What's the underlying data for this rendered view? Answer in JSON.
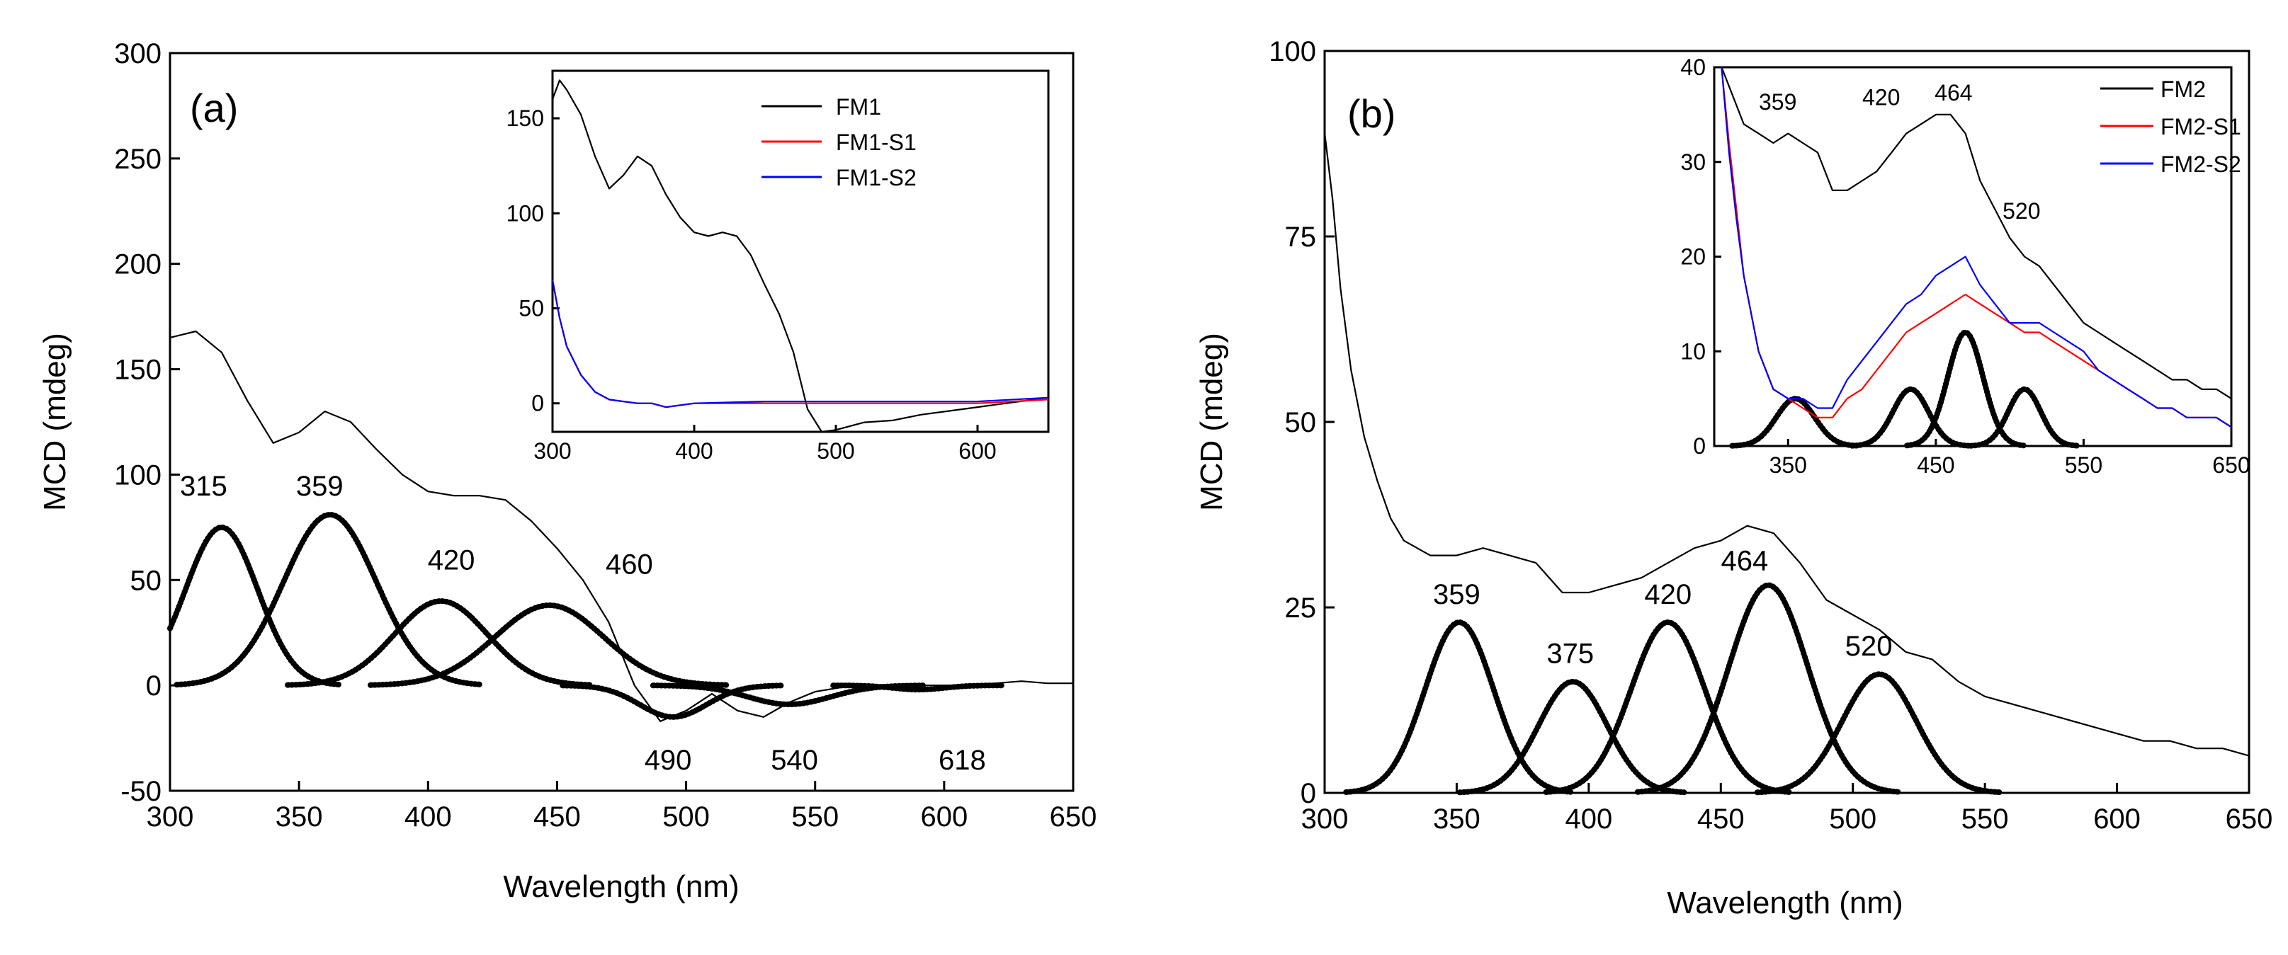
{
  "colors": {
    "black": "#000000",
    "red": "#ff0000",
    "blue": "#0000ff"
  },
  "chart_data": [
    {
      "type": "line",
      "panel": "a",
      "panel_label": "(a)",
      "xlabel": "Wavelength (nm)",
      "ylabel": "MCD (mdeg)",
      "xlim": [
        300,
        650
      ],
      "ylim": [
        -50,
        300
      ],
      "xticks": [
        300,
        350,
        400,
        450,
        500,
        550,
        600,
        650
      ],
      "yticks": [
        -50,
        0,
        50,
        100,
        150,
        200,
        250,
        300
      ],
      "series": [
        {
          "name": "FM1",
          "color": "#000000",
          "x": [
            300,
            310,
            320,
            330,
            340,
            350,
            360,
            370,
            380,
            390,
            400,
            410,
            420,
            430,
            440,
            450,
            460,
            470,
            480,
            490,
            500,
            510,
            520,
            530,
            540,
            550,
            560,
            570,
            580,
            590,
            600,
            610,
            620,
            630,
            640,
            650
          ],
          "y": [
            165,
            168,
            158,
            135,
            115,
            120,
            130,
            125,
            112,
            100,
            92,
            90,
            90,
            88,
            78,
            65,
            50,
            30,
            0,
            -17,
            -12,
            -4,
            -12,
            -15,
            -8,
            -3,
            -1,
            0,
            0,
            0,
            0,
            0,
            1,
            2,
            1,
            1
          ]
        }
      ],
      "gaussians": [
        {
          "center": 320,
          "amplitude": 75,
          "width": 14
        },
        {
          "center": 362,
          "amplitude": 81,
          "width": 18
        },
        {
          "center": 405,
          "amplitude": 40,
          "width": 18
        },
        {
          "center": 447,
          "amplitude": 38,
          "width": 21
        },
        {
          "center": 495,
          "amplitude": -15,
          "width": 13
        },
        {
          "center": 540,
          "amplitude": -9,
          "width": 16
        },
        {
          "center": 590,
          "amplitude": -2,
          "width": 10
        }
      ],
      "annotations": [
        {
          "text": "315",
          "x": 313,
          "y": 90
        },
        {
          "text": "359",
          "x": 358,
          "y": 90
        },
        {
          "text": "420",
          "x": 409,
          "y": 55
        },
        {
          "text": "460",
          "x": 478,
          "y": 53
        },
        {
          "text": "490",
          "x": 493,
          "y": -40
        },
        {
          "text": "540",
          "x": 542,
          "y": -40
        },
        {
          "text": "618",
          "x": 607,
          "y": -40
        }
      ],
      "inset": {
        "xlim": [
          300,
          650
        ],
        "ylim": [
          -15,
          175
        ],
        "xticks": [
          300,
          400,
          500,
          600
        ],
        "yticks": [
          0,
          50,
          100,
          150
        ],
        "legend": [
          "FM1",
          "FM1-S1",
          "FM1-S2"
        ],
        "series": [
          {
            "name": "FM1",
            "color": "#000000",
            "x": [
              300,
              305,
              310,
              320,
              330,
              340,
              350,
              360,
              370,
              380,
              390,
              400,
              410,
              420,
              430,
              440,
              450,
              460,
              470,
              480,
              490,
              500,
              520,
              540,
              560,
              580,
              600,
              620,
              640,
              650
            ],
            "y": [
              160,
              170,
              165,
              152,
              130,
              113,
              120,
              130,
              125,
              110,
              98,
              90,
              88,
              90,
              88,
              78,
              62,
              47,
              27,
              -3,
              -17,
              -14,
              -10,
              -9,
              -6,
              -4,
              -2,
              0,
              2,
              2
            ]
          },
          {
            "name": "FM1-S1",
            "color": "#ff0000",
            "x": [
              300,
              305,
              310,
              320,
              330,
              340,
              350,
              360,
              370,
              380,
              400,
              450,
              500,
              550,
              600,
              650
            ],
            "y": [
              65,
              45,
              30,
              15,
              6,
              2,
              1,
              0,
              0,
              -2,
              0,
              0,
              0,
              0,
              0,
              2
            ]
          },
          {
            "name": "FM1-S2",
            "color": "#0000ff",
            "x": [
              300,
              305,
              310,
              320,
              330,
              340,
              350,
              360,
              370,
              380,
              400,
              450,
              500,
              550,
              600,
              650
            ],
            "y": [
              65,
              45,
              30,
              15,
              6,
              2,
              1,
              0,
              0,
              -2,
              0,
              1,
              1,
              1,
              1,
              3
            ]
          }
        ]
      }
    },
    {
      "type": "line",
      "panel": "b",
      "panel_label": "(b)",
      "xlabel": "Wavelength (nm)",
      "ylabel": "MCD (mdeg)",
      "xlim": [
        300,
        650
      ],
      "ylim": [
        0,
        100
      ],
      "xticks": [
        300,
        350,
        400,
        450,
        500,
        550,
        600,
        650
      ],
      "yticks": [
        0,
        25,
        50,
        75,
        100
      ],
      "series": [
        {
          "name": "FM2",
          "color": "#000000",
          "x": [
            300,
            303,
            306,
            310,
            315,
            320,
            325,
            330,
            340,
            350,
            360,
            370,
            380,
            390,
            400,
            410,
            420,
            430,
            440,
            450,
            460,
            470,
            480,
            490,
            500,
            510,
            520,
            530,
            540,
            550,
            560,
            570,
            580,
            590,
            600,
            610,
            620,
            630,
            640,
            650
          ],
          "y": [
            89,
            80,
            68,
            57,
            48,
            42,
            37,
            34,
            32,
            32,
            33,
            32,
            31,
            27,
            27,
            28,
            29,
            31,
            33,
            34,
            36,
            35,
            31,
            26,
            24,
            22,
            19,
            18,
            15,
            13,
            12,
            11,
            10,
            9,
            8,
            7,
            7,
            6,
            6,
            5
          ]
        }
      ],
      "gaussians": [
        {
          "center": 351,
          "amplitude": 23,
          "width": 13
        },
        {
          "center": 394,
          "amplitude": 15,
          "width": 13
        },
        {
          "center": 430,
          "amplitude": 23,
          "width": 14
        },
        {
          "center": 468,
          "amplitude": 28,
          "width": 15
        },
        {
          "center": 510,
          "amplitude": 16,
          "width": 14
        }
      ],
      "annotations": [
        {
          "text": "359",
          "x": 350,
          "y": 25.5
        },
        {
          "text": "375",
          "x": 393,
          "y": 17.5
        },
        {
          "text": "420",
          "x": 430,
          "y": 25.5
        },
        {
          "text": "464",
          "x": 459,
          "y": 30
        },
        {
          "text": "520",
          "x": 506,
          "y": 18.5
        }
      ],
      "inset": {
        "xlim": [
          300,
          650
        ],
        "ylim": [
          0,
          40
        ],
        "xticks": [
          350,
          450,
          550,
          650
        ],
        "yticks": [
          0,
          10,
          20,
          30,
          40
        ],
        "legend": [
          "FM2",
          "FM2-S1",
          "FM2-S2"
        ],
        "annotations": [
          {
            "text": "359",
            "x": 343,
            "y": 35.5
          },
          {
            "text": "420",
            "x": 413,
            "y": 36
          },
          {
            "text": "464",
            "x": 462,
            "y": 36.5
          },
          {
            "text": "520",
            "x": 508,
            "y": 24
          }
        ],
        "series": [
          {
            "name": "FM2",
            "color": "#000000",
            "x": [
              305,
              310,
              315,
              320,
              330,
              340,
              350,
              360,
              370,
              380,
              390,
              400,
              410,
              420,
              430,
              440,
              450,
              460,
              470,
              480,
              490,
              500,
              510,
              520,
              530,
              540,
              550,
              560,
              570,
              580,
              590,
              600,
              610,
              620,
              630,
              640,
              650
            ],
            "y": [
              40,
              38,
              36,
              34,
              33,
              32,
              33,
              32,
              31,
              27,
              27,
              28,
              29,
              31,
              33,
              34,
              35,
              35,
              33,
              28,
              25,
              22,
              20,
              19,
              17,
              15,
              13,
              12,
              11,
              10,
              9,
              8,
              7,
              7,
              6,
              6,
              5
            ]
          },
          {
            "name": "FM2-S1",
            "color": "#ff0000",
            "x": [
              305,
              310,
              315,
              320,
              330,
              340,
              350,
              360,
              370,
              380,
              390,
              400,
              410,
              420,
              430,
              440,
              450,
              460,
              470,
              480,
              490,
              500,
              510,
              520,
              530,
              540,
              550,
              560,
              570,
              580,
              590,
              600,
              610,
              620,
              630,
              640,
              650
            ],
            "y": [
              40,
              32,
              25,
              18,
              10,
              6,
              5,
              4,
              3,
              3,
              5,
              6,
              8,
              10,
              12,
              13,
              14,
              15,
              16,
              15,
              14,
              13,
              12,
              12,
              11,
              10,
              9,
              8,
              7,
              6,
              5,
              4,
              4,
              3,
              3,
              3,
              2
            ]
          },
          {
            "name": "FM2-S2",
            "color": "#0000ff",
            "x": [
              305,
              310,
              315,
              320,
              330,
              340,
              350,
              360,
              370,
              380,
              390,
              400,
              410,
              420,
              430,
              440,
              450,
              460,
              470,
              480,
              490,
              500,
              510,
              520,
              530,
              540,
              550,
              560,
              570,
              580,
              590,
              600,
              610,
              620,
              630,
              640,
              650
            ],
            "y": [
              40,
              31,
              24,
              18,
              10,
              6,
              5,
              5,
              4,
              4,
              7,
              9,
              11,
              13,
              15,
              16,
              18,
              19,
              20,
              17,
              15,
              13,
              13,
              13,
              12,
              11,
              10,
              8,
              7,
              6,
              5,
              4,
              4,
              3,
              3,
              3,
              2
            ]
          }
        ],
        "gaussians": [
          {
            "center": 355,
            "amplitude": 5,
            "width": 13
          },
          {
            "center": 433,
            "amplitude": 6,
            "width": 12
          },
          {
            "center": 470,
            "amplitude": 12,
            "width": 12
          },
          {
            "center": 510,
            "amplitude": 6,
            "width": 11
          }
        ]
      }
    }
  ]
}
